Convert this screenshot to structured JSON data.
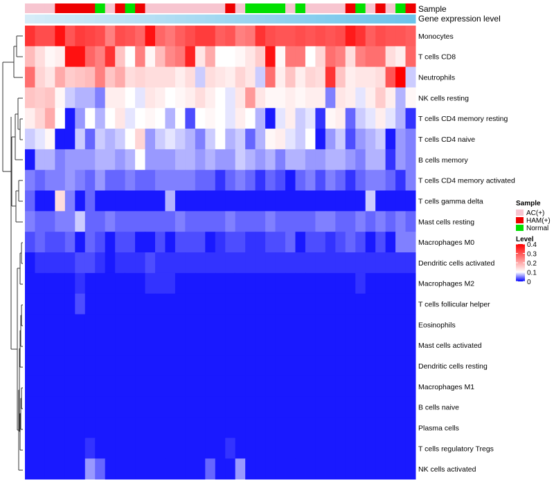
{
  "chart_data": {
    "type": "heatmap",
    "annotation_labels": {
      "sample": "Sample",
      "expression": "Gene expression level"
    },
    "sample_groups": {
      "AC": {
        "label": "AC(+)",
        "color": "#f7c5d0"
      },
      "HAM": {
        "label": "HAM(+)",
        "color": "#ee0000"
      },
      "Normal": {
        "label": "Normal",
        "color": "#00e000"
      }
    },
    "sample_annotation": [
      "AC",
      "AC",
      "AC",
      "HAM",
      "HAM",
      "HAM",
      "HAM",
      "Normal",
      "AC",
      "HAM",
      "Normal",
      "HAM",
      "AC",
      "AC",
      "AC",
      "AC",
      "AC",
      "AC",
      "AC",
      "AC",
      "HAM",
      "AC",
      "Normal",
      "Normal",
      "Normal",
      "Normal",
      "AC",
      "Normal",
      "AC",
      "AC",
      "AC",
      "AC",
      "HAM",
      "Normal",
      "AC",
      "HAM",
      "AC",
      "Normal",
      "HAM"
    ],
    "expression_gradient": [
      "#d6ecf8",
      "#6cc3ea"
    ],
    "rows": [
      "Monocytes",
      "T cells CD8",
      "Neutrophils",
      "NK cells resting",
      "T cells CD4 memory resting",
      "T cells CD4 naive",
      "B cells memory",
      "T cells CD4 memory activated",
      "T cells gamma delta",
      "Mast cells resting",
      "Macrophages M0",
      "Dendritic cells activated",
      "Macrophages M2",
      "T cells follicular helper",
      "Eosinophils",
      "Mast cells activated",
      "Dendritic cells resting",
      "Macrophages M1",
      "B cells naive",
      "Plasma cells",
      "T cells regulatory  Tregs",
      "NK cells activated"
    ],
    "values": [
      [
        0.34,
        0.31,
        0.31,
        0.38,
        0.3,
        0.33,
        0.32,
        0.31,
        0.25,
        0.31,
        0.3,
        0.28,
        0.38,
        0.28,
        0.26,
        0.29,
        0.31,
        0.33,
        0.33,
        0.29,
        0.3,
        0.25,
        0.26,
        0.34,
        0.31,
        0.3,
        0.3,
        0.31,
        0.3,
        0.31,
        0.3,
        0.31,
        0.37,
        0.34,
        0.29,
        0.31,
        0.3,
        0.3,
        0.29
      ],
      [
        0.18,
        0.14,
        0.11,
        0.12,
        0.38,
        0.38,
        0.28,
        0.25,
        0.34,
        0.17,
        0.1,
        0.25,
        0.11,
        0.18,
        0.24,
        0.26,
        0.36,
        0.13,
        0.2,
        0.1,
        0.1,
        0.11,
        0.13,
        0.16,
        0.38,
        0.11,
        0.26,
        0.26,
        0.1,
        0.15,
        0.27,
        0.25,
        0.14,
        0.25,
        0.27,
        0.27,
        0.14,
        0.12,
        0.28
      ],
      [
        0.27,
        0.15,
        0.13,
        0.2,
        0.16,
        0.17,
        0.18,
        0.25,
        0.17,
        0.2,
        0.14,
        0.15,
        0.14,
        0.14,
        0.14,
        0.12,
        0.14,
        0.08,
        0.14,
        0.13,
        0.12,
        0.15,
        0.13,
        0.08,
        0.27,
        0.12,
        0.17,
        0.12,
        0.15,
        0.14,
        0.34,
        0.17,
        0.12,
        0.13,
        0.13,
        0.14,
        0.3,
        0.4,
        0.08
      ],
      [
        0.17,
        0.16,
        0.17,
        0.11,
        0.08,
        0.07,
        0.07,
        0.05,
        0.12,
        0.12,
        0.1,
        0.09,
        0.13,
        0.12,
        0.1,
        0.11,
        0.12,
        0.14,
        0.12,
        0.1,
        0.09,
        0.13,
        0.22,
        0.13,
        0.11,
        0.11,
        0.12,
        0.11,
        0.12,
        0.12,
        0.05,
        0.13,
        0.12,
        0.09,
        0.12,
        0.16,
        0.12,
        0.07,
        0.11
      ],
      [
        0.12,
        0.15,
        0.2,
        0.1,
        0.01,
        0.06,
        0.1,
        0.07,
        0.1,
        0.13,
        0.09,
        0.1,
        0.11,
        0.1,
        0.07,
        0.1,
        0.03,
        0.1,
        0.11,
        0.1,
        0.09,
        0.12,
        0.1,
        0.07,
        0.01,
        0.09,
        0.12,
        0.08,
        0.09,
        0.02,
        0.11,
        0.12,
        0.04,
        0.08,
        0.09,
        0.12,
        0.09,
        0.07,
        0.02
      ],
      [
        0.08,
        0.09,
        0.11,
        0.01,
        0.01,
        0.08,
        0.04,
        0.08,
        0.07,
        0.08,
        0.1,
        0.15,
        0.06,
        0.08,
        0.09,
        0.08,
        0.07,
        0.05,
        0.08,
        0.1,
        0.07,
        0.08,
        0.04,
        0.07,
        0.11,
        0.12,
        0.09,
        0.08,
        0.1,
        0.01,
        0.06,
        0.08,
        0.03,
        0.06,
        0.07,
        0.08,
        0.01,
        0.06,
        0.05
      ],
      [
        0.01,
        0.07,
        0.07,
        0.05,
        0.06,
        0.06,
        0.06,
        0.07,
        0.07,
        0.06,
        0.07,
        0.1,
        0.06,
        0.06,
        0.06,
        0.07,
        0.07,
        0.06,
        0.07,
        0.06,
        0.06,
        0.08,
        0.07,
        0.06,
        0.07,
        0.05,
        0.07,
        0.07,
        0.06,
        0.06,
        0.07,
        0.07,
        0.06,
        0.05,
        0.07,
        0.07,
        0.02,
        0.06,
        0.05
      ],
      [
        0.05,
        0.04,
        0.05,
        0.05,
        0.06,
        0.05,
        0.04,
        0.06,
        0.04,
        0.04,
        0.05,
        0.04,
        0.04,
        0.05,
        0.05,
        0.05,
        0.05,
        0.04,
        0.04,
        0.02,
        0.04,
        0.05,
        0.04,
        0.02,
        0.04,
        0.03,
        0.01,
        0.04,
        0.05,
        0.03,
        0.05,
        0.04,
        0.02,
        0.04,
        0.05,
        0.05,
        0.04,
        0.02,
        0.05
      ],
      [
        0.04,
        0.01,
        0.01,
        0.14,
        0.05,
        0.01,
        0.04,
        0.01,
        0.01,
        0.01,
        0.01,
        0.01,
        0.01,
        0.01,
        0.07,
        0.01,
        0.01,
        0.01,
        0.01,
        0.01,
        0.01,
        0.01,
        0.01,
        0.01,
        0.01,
        0.01,
        0.01,
        0.01,
        0.01,
        0.01,
        0.01,
        0.01,
        0.01,
        0.01,
        0.08,
        0.01,
        0.01,
        0.01,
        0.01
      ],
      [
        0.05,
        0.04,
        0.04,
        0.05,
        0.05,
        0.08,
        0.04,
        0.04,
        0.05,
        0.04,
        0.04,
        0.04,
        0.04,
        0.04,
        0.04,
        0.05,
        0.04,
        0.04,
        0.04,
        0.04,
        0.05,
        0.04,
        0.04,
        0.04,
        0.05,
        0.04,
        0.04,
        0.04,
        0.04,
        0.05,
        0.05,
        0.04,
        0.04,
        0.05,
        0.04,
        0.05,
        0.04,
        0.05,
        0.04
      ],
      [
        0.03,
        0.04,
        0.03,
        0.03,
        0.04,
        0.01,
        0.04,
        0.03,
        0.01,
        0.03,
        0.03,
        0.01,
        0.01,
        0.03,
        0.01,
        0.03,
        0.03,
        0.03,
        0.01,
        0.02,
        0.03,
        0.03,
        0.02,
        0.02,
        0.03,
        0.03,
        0.04,
        0.01,
        0.03,
        0.03,
        0.02,
        0.03,
        0.04,
        0.03,
        0.01,
        0.03,
        0.01,
        0.05,
        0.05
      ],
      [
        0.01,
        0.02,
        0.02,
        0.02,
        0.02,
        0.03,
        0.03,
        0.02,
        0.01,
        0.02,
        0.02,
        0.02,
        0.03,
        0.02,
        0.02,
        0.02,
        0.02,
        0.02,
        0.02,
        0.02,
        0.02,
        0.02,
        0.02,
        0.02,
        0.02,
        0.02,
        0.02,
        0.02,
        0.02,
        0.02,
        0.02,
        0.02,
        0.02,
        0.02,
        0.02,
        0.02,
        0.02,
        0.02,
        0.02
      ],
      [
        0.01,
        0.01,
        0.01,
        0.01,
        0.01,
        0.02,
        0.01,
        0.01,
        0.01,
        0.01,
        0.01,
        0.01,
        0.02,
        0.02,
        0.02,
        0.01,
        0.01,
        0.01,
        0.01,
        0.01,
        0.01,
        0.01,
        0.01,
        0.01,
        0.01,
        0.01,
        0.01,
        0.01,
        0.01,
        0.01,
        0.01,
        0.01,
        0.01,
        0.02,
        0.01,
        0.01,
        0.01,
        0.01,
        0.01
      ],
      [
        0.01,
        0.01,
        0.01,
        0.01,
        0.01,
        0.03,
        0.01,
        0.01,
        0.01,
        0.01,
        0.01,
        0.01,
        0.01,
        0.01,
        0.01,
        0.01,
        0.01,
        0.01,
        0.01,
        0.01,
        0.01,
        0.01,
        0.01,
        0.01,
        0.01,
        0.01,
        0.01,
        0.01,
        0.01,
        0.01,
        0.01,
        0.01,
        0.01,
        0.01,
        0.01,
        0.01,
        0.01,
        0.01,
        0.01
      ],
      [
        0.01,
        0.01,
        0.01,
        0.01,
        0.01,
        0.01,
        0.01,
        0.01,
        0.01,
        0.01,
        0.01,
        0.01,
        0.01,
        0.01,
        0.01,
        0.01,
        0.01,
        0.01,
        0.01,
        0.01,
        0.01,
        0.01,
        0.01,
        0.01,
        0.01,
        0.01,
        0.01,
        0.01,
        0.01,
        0.01,
        0.01,
        0.01,
        0.01,
        0.01,
        0.01,
        0.01,
        0.01,
        0.01,
        0.01
      ],
      [
        0.01,
        0.01,
        0.01,
        0.01,
        0.01,
        0.01,
        0.01,
        0.01,
        0.01,
        0.01,
        0.01,
        0.01,
        0.01,
        0.01,
        0.01,
        0.01,
        0.01,
        0.01,
        0.01,
        0.01,
        0.01,
        0.01,
        0.01,
        0.01,
        0.01,
        0.01,
        0.01,
        0.01,
        0.01,
        0.01,
        0.01,
        0.01,
        0.01,
        0.01,
        0.01,
        0.01,
        0.01,
        0.01,
        0.01
      ],
      [
        0.01,
        0.01,
        0.01,
        0.01,
        0.01,
        0.01,
        0.01,
        0.01,
        0.01,
        0.01,
        0.01,
        0.01,
        0.01,
        0.01,
        0.01,
        0.01,
        0.01,
        0.01,
        0.01,
        0.01,
        0.01,
        0.01,
        0.01,
        0.01,
        0.01,
        0.01,
        0.01,
        0.01,
        0.01,
        0.01,
        0.01,
        0.01,
        0.01,
        0.01,
        0.01,
        0.01,
        0.01,
        0.01,
        0.01
      ],
      [
        0.01,
        0.01,
        0.01,
        0.01,
        0.01,
        0.01,
        0.01,
        0.01,
        0.01,
        0.01,
        0.01,
        0.01,
        0.01,
        0.01,
        0.01,
        0.01,
        0.01,
        0.01,
        0.01,
        0.01,
        0.01,
        0.01,
        0.01,
        0.01,
        0.01,
        0.01,
        0.01,
        0.01,
        0.01,
        0.01,
        0.01,
        0.01,
        0.01,
        0.01,
        0.01,
        0.01,
        0.01,
        0.01,
        0.01
      ],
      [
        0.01,
        0.01,
        0.01,
        0.01,
        0.01,
        0.01,
        0.01,
        0.01,
        0.01,
        0.01,
        0.01,
        0.01,
        0.01,
        0.01,
        0.01,
        0.01,
        0.01,
        0.01,
        0.01,
        0.01,
        0.01,
        0.01,
        0.01,
        0.01,
        0.01,
        0.01,
        0.01,
        0.01,
        0.01,
        0.01,
        0.01,
        0.01,
        0.01,
        0.01,
        0.01,
        0.01,
        0.01,
        0.01,
        0.01
      ],
      [
        0.01,
        0.01,
        0.01,
        0.01,
        0.01,
        0.01,
        0.01,
        0.01,
        0.01,
        0.01,
        0.01,
        0.01,
        0.01,
        0.01,
        0.01,
        0.01,
        0.01,
        0.01,
        0.01,
        0.01,
        0.01,
        0.01,
        0.01,
        0.01,
        0.01,
        0.01,
        0.01,
        0.01,
        0.01,
        0.01,
        0.01,
        0.01,
        0.01,
        0.01,
        0.01,
        0.01,
        0.01,
        0.01,
        0.01
      ],
      [
        0.01,
        0.01,
        0.01,
        0.01,
        0.01,
        0.01,
        0.02,
        0.01,
        0.01,
        0.01,
        0.01,
        0.01,
        0.01,
        0.01,
        0.01,
        0.01,
        0.01,
        0.01,
        0.01,
        0.01,
        0.02,
        0.01,
        0.01,
        0.01,
        0.01,
        0.01,
        0.01,
        0.01,
        0.01,
        0.01,
        0.01,
        0.01,
        0.01,
        0.01,
        0.01,
        0.01,
        0.01,
        0.01,
        0.01
      ],
      [
        0.01,
        0.01,
        0.01,
        0.01,
        0.01,
        0.01,
        0.06,
        0.04,
        0.01,
        0.01,
        0.01,
        0.01,
        0.01,
        0.01,
        0.01,
        0.01,
        0.01,
        0.01,
        0.04,
        0.01,
        0.01,
        0.06,
        0.01,
        0.01,
        0.01,
        0.01,
        0.01,
        0.01,
        0.01,
        0.01,
        0.01,
        0.01,
        0.01,
        0.01,
        0.01,
        0.01,
        0.01,
        0.01,
        0.01
      ]
    ],
    "legend": {
      "sample_title": "Sample",
      "level_title": "Level",
      "level_ticks": [
        "0.4",
        "0.3",
        "0.2",
        "0.1",
        "0"
      ],
      "level_tick_values": [
        0.4,
        0.3,
        0.2,
        0.1,
        0
      ],
      "scale": {
        "min": 0,
        "mid": 0.1,
        "max": 0.4,
        "low_color": "#0000ff",
        "mid_color": "#ffffff",
        "high_color": "#ff0000"
      }
    }
  }
}
